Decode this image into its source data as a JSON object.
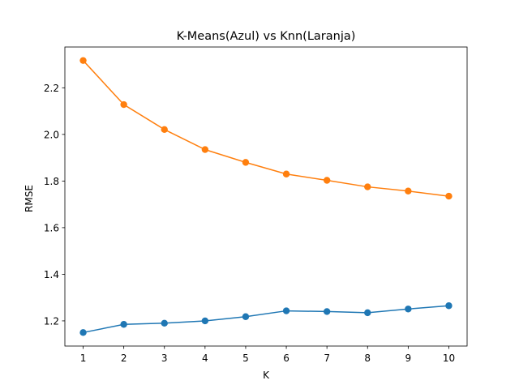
{
  "chart_data": {
    "type": "line",
    "title": "K-Means(Azul) vs Knn(Laranja)",
    "xlabel": "K",
    "ylabel": "RMSE",
    "x": [
      1,
      2,
      3,
      4,
      5,
      6,
      7,
      8,
      9,
      10
    ],
    "xlim": [
      0.55,
      10.45
    ],
    "ylim": [
      1.092,
      2.375
    ],
    "xticks": [
      1,
      2,
      3,
      4,
      5,
      6,
      7,
      8,
      9,
      10
    ],
    "yticks": [
      "1.2",
      "1.4",
      "1.6",
      "1.8",
      "2.0",
      "2.2"
    ],
    "grid": false,
    "series": [
      {
        "color": "#1f77b4",
        "marker": "circle",
        "values": [
          1.15,
          1.185,
          1.19,
          1.2,
          1.218,
          1.243,
          1.24,
          1.235,
          1.251,
          1.265
        ]
      },
      {
        "color": "#ff7f0e",
        "marker": "circle",
        "values": [
          2.317,
          2.128,
          2.021,
          1.935,
          1.88,
          1.83,
          1.803,
          1.775,
          1.757,
          1.735
        ]
      }
    ]
  }
}
